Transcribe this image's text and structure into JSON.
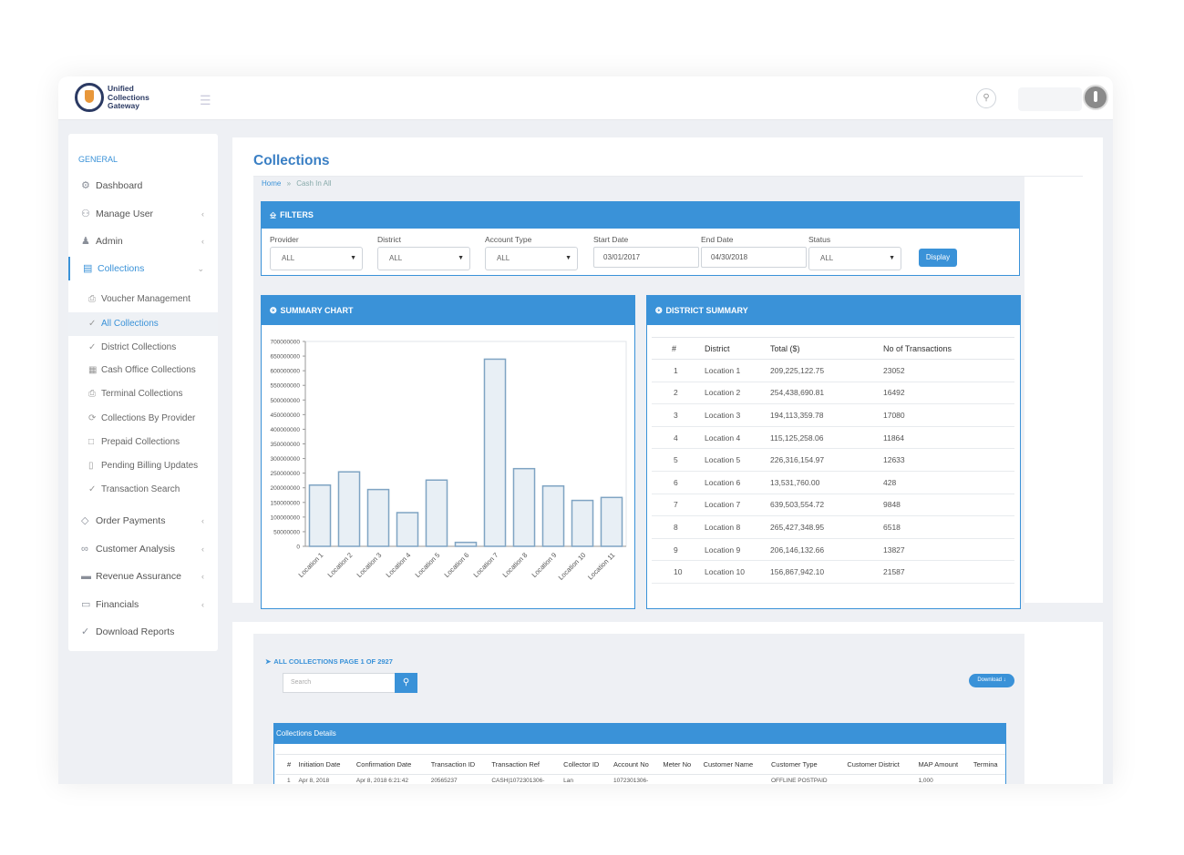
{
  "app": {
    "logo_text": "Unified Collections Gateway",
    "menu_icon": "hamburger-icon",
    "search_icon": "search-icon"
  },
  "sidebar": {
    "heading": "GENERAL",
    "items": [
      {
        "label": "Dashboard",
        "icon": "dashboard-icon"
      },
      {
        "label": "Manage User",
        "icon": "users-icon"
      },
      {
        "label": "Admin",
        "icon": "user-icon"
      },
      {
        "label": "Collections",
        "icon": "briefcase-icon"
      },
      {
        "label": "Order Payments",
        "icon": "diamond-icon"
      },
      {
        "label": "Customer Analysis",
        "icon": "binoculars-icon"
      },
      {
        "label": "Revenue Assurance",
        "icon": "credit-card-icon"
      },
      {
        "label": "Financials",
        "icon": "folder-icon"
      },
      {
        "label": "Download Reports",
        "icon": "tag-icon"
      }
    ],
    "subitems": [
      {
        "label": "Voucher Management"
      },
      {
        "label": "All Collections"
      },
      {
        "label": "District Collections"
      },
      {
        "label": "Cash Office Collections"
      },
      {
        "label": "Terminal Collections"
      },
      {
        "label": "Collections By Provider"
      },
      {
        "label": "Prepaid Collections"
      },
      {
        "label": "Pending Billing Updates"
      },
      {
        "label": "Transaction Search"
      }
    ]
  },
  "page": {
    "title": "Collections",
    "breadcrumb_home": "Home",
    "breadcrumb_sep": "»",
    "breadcrumb_current": "Cash In All"
  },
  "filters": {
    "title": "FILTERS",
    "provider_label": "Provider",
    "provider_value": "ALL",
    "district_label": "District",
    "district_value": "ALL",
    "account_type_label": "Account Type",
    "account_type_value": "ALL",
    "start_date_label": "Start Date",
    "start_date_value": "03/01/2017",
    "end_date_label": "End Date",
    "end_date_value": "04/30/2018",
    "status_label": "Status",
    "status_value": "ALL",
    "display_button": "Display"
  },
  "summary_chart": {
    "title": "SUMMARY CHART"
  },
  "chart_data": {
    "type": "bar",
    "categories": [
      "Location 1",
      "Location 2",
      "Location 3",
      "Location 4",
      "Location 5",
      "Location 6",
      "Location 7",
      "Location 8",
      "Location 9",
      "Location 10",
      "Location 11"
    ],
    "values": [
      209225122.75,
      254438690.81,
      194113359.78,
      115125258.06,
      226316154.97,
      13531760.0,
      639503554.72,
      265427348.95,
      206146132.66,
      156867942.1,
      167000000
    ],
    "ylim": [
      0,
      700000000
    ],
    "yticks": [
      "0",
      "50000000",
      "100000000",
      "150000000",
      "200000000",
      "250000000",
      "300000000",
      "350000000",
      "400000000",
      "450000000",
      "500000000",
      "550000000",
      "600000000",
      "650000000",
      "700000000"
    ],
    "colors": {
      "fill": "#e8eff5",
      "stroke": "#7fa4c3"
    }
  },
  "district_summary": {
    "title": "DISTRICT SUMMARY",
    "columns": [
      "#",
      "District",
      "Total ($)",
      "No of Transactions"
    ],
    "rows": [
      [
        "1",
        "Location 1",
        "209,225,122.75",
        "23052"
      ],
      [
        "2",
        "Location 2",
        "254,438,690.81",
        "16492"
      ],
      [
        "3",
        "Location 3",
        "194,113,359.78",
        "17080"
      ],
      [
        "4",
        "Location 4",
        "115,125,258.06",
        "11864"
      ],
      [
        "5",
        "Location 5",
        "226,316,154.97",
        "12633"
      ],
      [
        "6",
        "Location 6",
        "13,531,760.00",
        "428"
      ],
      [
        "7",
        "Location 7",
        "639,503,554.72",
        "9848"
      ],
      [
        "8",
        "Location 8",
        "265,427,348.95",
        "6518"
      ],
      [
        "9",
        "Location 9",
        "206,146,132.66",
        "13827"
      ],
      [
        "10",
        "Location 10",
        "156,867,942.10",
        "21587"
      ]
    ]
  },
  "all_collections": {
    "title": "ALL COLLECTIONS PAGE 1 OF 2927",
    "search_placeholder": "Search",
    "download_button": "Download",
    "panel_title": "Collections Details",
    "columns": [
      "#",
      "Initiation Date",
      "Confirmation Date",
      "Transaction ID",
      "Transaction Ref",
      "Collector ID",
      "Account No",
      "Meter No",
      "Customer Name",
      "Customer Type",
      "Customer District",
      "MAP Amount",
      "Termina"
    ],
    "rows": [
      [
        "1",
        "Apr 8, 2018",
        "Apr 8, 2018 6:21:42",
        "20565237",
        "CASH|1072301306-",
        "Lan",
        "1072301306-",
        "",
        "",
        "OFFLINE POSTPAID",
        "",
        "1,000",
        ""
      ]
    ]
  },
  "colors": {
    "accent": "#3a92d8",
    "title": "#3a7fc4",
    "background": "#eef0f4"
  }
}
